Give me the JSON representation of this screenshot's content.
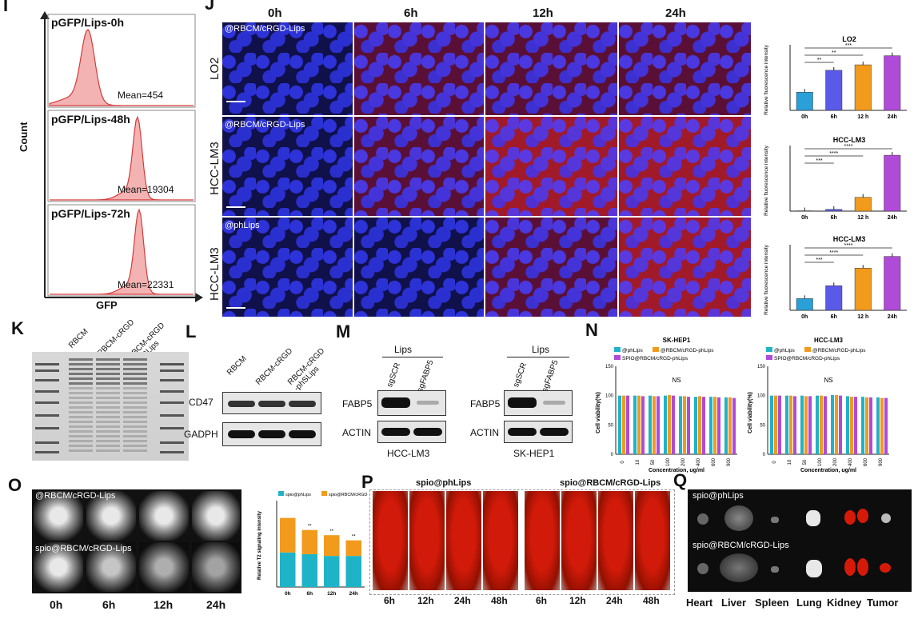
{
  "panels": {
    "I": {
      "letter": "I",
      "hist_titles": [
        "pGFP/Lips-0h",
        "pGFP/Lips-48h",
        "pGFP/Lips-72h"
      ],
      "means": [
        "Mean=454",
        "Mean=19304",
        "Mean=22331"
      ],
      "ylabel": "Count",
      "xlabel": "GFP"
    },
    "J": {
      "letter": "J",
      "times": [
        "0h",
        "6h",
        "12h",
        "24h"
      ],
      "rows": [
        "LO2",
        "HCC-LM3",
        "HCC-LM3"
      ],
      "row_tags": [
        "@RBCM/cRGD-Lips",
        "@RBCM/cRGD-Lips",
        "@phLips"
      ]
    },
    "K": {
      "letter": "K",
      "lanes": [
        "RBCM",
        "RBCM-cRGD",
        "RBCM-cRGD\n-phSLips"
      ]
    },
    "L": {
      "letter": "L",
      "lanes": [
        "RBCM",
        "RBCM-cRGD",
        "RBCM-cRGD\n-phSLips"
      ],
      "proteins": [
        "CD47",
        "GADPH"
      ]
    },
    "M": {
      "letter": "M",
      "group": "Lips",
      "lanes": [
        "sgSCR",
        "sgFABP5"
      ],
      "proteins": [
        "FABP5",
        "ACTIN"
      ],
      "cells": [
        "HCC-LM3",
        "SK-HEP1"
      ]
    },
    "N": {
      "letter": "N",
      "titles": [
        "SK-HEP1",
        "HCC-LM3"
      ],
      "legend": [
        "@phLips",
        "@RBCM/cRGD-phLips",
        "SPIO@RBCM/cRGD-phLips"
      ],
      "ylabel": "Cell viability(%)",
      "xlabel": "Concentration, ug/ml",
      "ns": "NS"
    },
    "O": {
      "letter": "O",
      "tags": [
        "@RBCM/cRGD-Lips",
        "spio@RBCM/cRGD-Lips"
      ],
      "times": [
        "0h",
        "6h",
        "12h",
        "24h"
      ],
      "legend": [
        "spio@phLips",
        "spio@RBCM/cRGD-Lips"
      ],
      "ylabel": "Relative\nT2 signaling intensity"
    },
    "P": {
      "letter": "P",
      "groups": [
        "spio@phLips",
        "spio@RBCM/cRGD-Lips"
      ],
      "times": [
        "6h",
        "12h",
        "24h",
        "48h",
        "6h",
        "12h",
        "24h",
        "48h"
      ]
    },
    "Q": {
      "letter": "Q",
      "groups": [
        "spio@phLips",
        "spio@RBCM/cRGD-Lips"
      ],
      "organs": [
        "Heart",
        "Liver",
        "Spleen",
        "Lung",
        "Kidney",
        "Tumor"
      ]
    }
  },
  "chart_data": [
    {
      "type": "bar",
      "title": "LO2",
      "ylabel": "Relative fluorescence intensity",
      "categories": [
        "0h",
        "6h",
        "12 h",
        "24h"
      ],
      "values": [
        1.0,
        2.2,
        2.5,
        3.0
      ],
      "ylim": [
        0,
        3.6
      ],
      "colors": [
        "#2a9fd8",
        "#5a5ae8",
        "#f29a1c",
        "#b04ad8"
      ],
      "sig": [
        "***",
        "**",
        "**"
      ]
    },
    {
      "type": "bar",
      "title": "HCC-LM3",
      "ylabel": "Relative fluorescence intensity",
      "categories": [
        "0h",
        "6h",
        "12 h",
        "24h"
      ],
      "values": [
        1.0,
        5.0,
        40.0,
        162.0
      ],
      "ylim": [
        0,
        190
      ],
      "colors": [
        "#2a9fd8",
        "#5a5ae8",
        "#f29a1c",
        "#b04ad8"
      ],
      "sig": [
        "****",
        "****",
        "***"
      ]
    },
    {
      "type": "bar",
      "title": "HCC-LM3",
      "ylabel": "Relative fluorescence intensity",
      "categories": [
        "0h",
        "6h",
        "12 h",
        "24h"
      ],
      "values": [
        1.0,
        2.1,
        3.6,
        4.6
      ],
      "ylim": [
        0,
        5.6
      ],
      "colors": [
        "#2a9fd8",
        "#5a5ae8",
        "#f29a1c",
        "#b04ad8"
      ],
      "sig": [
        "****",
        "****",
        "***"
      ]
    },
    {
      "type": "bar",
      "title": "SK-HEP1",
      "ylabel": "Cell viability(%)",
      "xlabel": "Concentration, ug/ml",
      "categories": [
        "0",
        "10",
        "50",
        "100",
        "200",
        "400",
        "600",
        "900"
      ],
      "series": [
        {
          "name": "@phLips",
          "values": [
            100,
            100,
            100,
            100,
            99,
            98,
            98,
            97
          ]
        },
        {
          "name": "@RBCM/cRGD-phLips",
          "values": [
            100,
            100,
            99,
            101,
            99,
            99,
            98,
            97
          ]
        },
        {
          "name": "SPIO@RBCM/cRGD-phLips",
          "values": [
            100,
            99,
            99,
            100,
            98,
            98,
            97,
            96
          ]
        }
      ],
      "ylim": [
        0,
        150
      ]
    },
    {
      "type": "bar",
      "title": "HCC-LM3",
      "ylabel": "Cell viability(%)",
      "xlabel": "Concentration, ug/ml",
      "categories": [
        "0",
        "10",
        "50",
        "100",
        "200",
        "400",
        "600",
        "900"
      ],
      "series": [
        {
          "name": "@phLips",
          "values": [
            100,
            100,
            100,
            100,
            101,
            99,
            98,
            97
          ]
        },
        {
          "name": "@RBCM/cRGD-phLips",
          "values": [
            100,
            100,
            99,
            100,
            101,
            98,
            97,
            96
          ]
        },
        {
          "name": "SPIO@RBCM/cRGD-phLips",
          "values": [
            100,
            99,
            99,
            99,
            100,
            98,
            97,
            96
          ]
        }
      ],
      "ylim": [
        0,
        150
      ]
    },
    {
      "type": "bar",
      "title": "",
      "ylabel": "Relative T2 signaling intensity",
      "categories": [
        "0h",
        "6h",
        "12h",
        "24h"
      ],
      "series": [
        {
          "name": "spio@phLips",
          "values": [
            10,
            9.5,
            9,
            9
          ]
        },
        {
          "name": "spio@RBCM/cRGD-Lips",
          "values": [
            10,
            7,
            6,
            4.5
          ]
        }
      ],
      "stacked": true,
      "ylim": [
        0,
        25
      ],
      "sig": [
        "",
        "**",
        "**",
        "**"
      ]
    }
  ]
}
